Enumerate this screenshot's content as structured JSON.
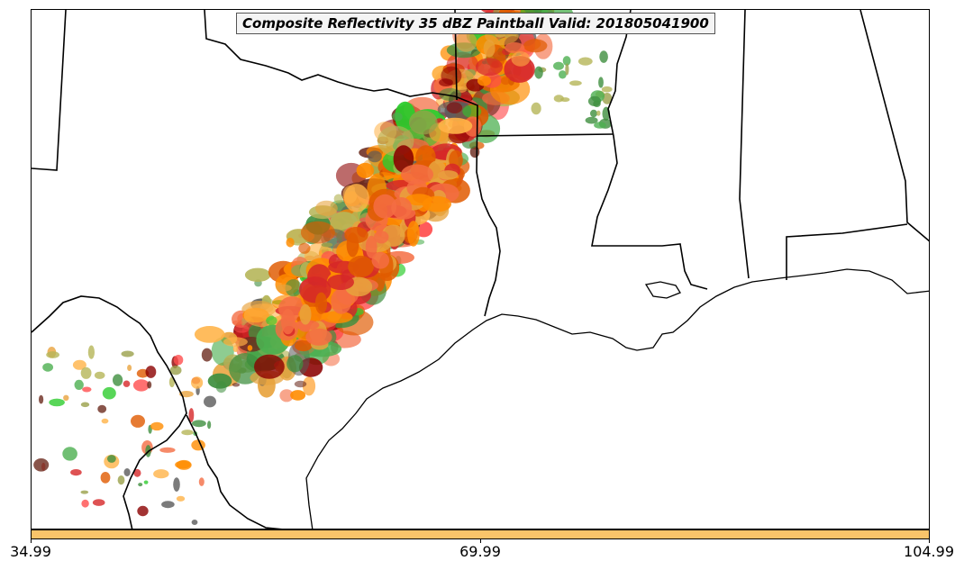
{
  "title": "Composite Reflectivity 35 dBZ Paintball Valid: 201805041900",
  "colors": {
    "outline": "#000000",
    "colorbar": "#f9c46a",
    "paintball": [
      "#d62728",
      "#f46d43",
      "#ff8c00",
      "#e8a33d",
      "#9aa04a",
      "#4caf50",
      "#2ecc2e",
      "#6b2a1e",
      "#8b0000",
      "#5a5a5a",
      "#b5b558",
      "#ff4d4d",
      "#3f8f3f",
      "#ffb347",
      "#e05a00"
    ]
  },
  "colorbar": {
    "ticks": [
      "34.99",
      "69.99",
      "104.99"
    ]
  },
  "icons": [
    "state-boundary-lines",
    "coastline",
    "paintball-echo-blobs"
  ]
}
